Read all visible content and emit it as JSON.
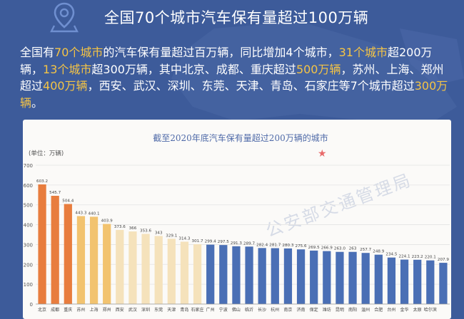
{
  "header": {
    "title": "全国70个城市汽车保有量超过100万辆",
    "icon": "location-pin-icon"
  },
  "summary": {
    "p1": "全国有",
    "h1": "70个城市",
    "p2": "的汽车保有量超过百万辆，同比增加4个城市，",
    "h2": "31个城市",
    "p3": "超200万辆，",
    "h3": "13个城市",
    "p4": "超300万辆，其中北京、成都、重庆超过",
    "h4": "500万辆",
    "p5": "，苏州、上海、郑州超过",
    "h5": "400万辆",
    "p6": "，西安、武汉、深圳、东莞、天津、青岛、石家庄等7个城市超过",
    "h6": "300万辆",
    "p7": "。"
  },
  "watermark": "公安部交通管理局",
  "colors": {
    "bg": "#3d5b9a",
    "highlight": "#f5c445",
    "over500": "#e87d3e",
    "over400": "#f2c36f",
    "over300": "#f5e2bb",
    "over200": "#4a6fb5"
  },
  "chart_data": {
    "type": "bar",
    "title": "截至2020年底汽车保有量超过200万辆的城市",
    "ylabel": "(单位：万辆)",
    "ylim": [
      0,
      700
    ],
    "yticks": [
      0,
      100,
      200,
      300,
      400,
      500,
      600,
      700
    ],
    "grid": true,
    "categories": [
      "北京",
      "成都",
      "重庆",
      "苏州",
      "上海",
      "郑州",
      "西安",
      "武汉",
      "深圳",
      "东莞",
      "天津",
      "青岛",
      "石家庄",
      "广州",
      "宁波",
      "佛山",
      "临沂",
      "长沙",
      "杭州",
      "南京",
      "济南",
      "保定",
      "潍坊",
      "昆明",
      "南阳",
      "温州",
      "合肥",
      "台州",
      "金华",
      "太原",
      "哈尔滨"
    ],
    "values": [
      603.2,
      545.7,
      504.4,
      443.3,
      440.1,
      403.9,
      373.6,
      366,
      353.6,
      343,
      329.1,
      314.3,
      301.7,
      299.4,
      297.5,
      291.3,
      289.7,
      282.4,
      281.7,
      280.3,
      275.6,
      269.5,
      266.9,
      263,
      263,
      257.7,
      248.9,
      234.5,
      224.1,
      223.2,
      220.1
    ],
    "value_labels": [
      "603.2",
      "545.7",
      "504.4",
      "443.3",
      "440.1",
      "403.9",
      "373.6",
      "366",
      "353.6",
      "343",
      "329.1",
      "314.3",
      "301.7",
      "299.4",
      "297.5",
      "291.3",
      "289.7",
      "282.4",
      "281.7",
      "280.3",
      "275.6",
      "269.5",
      "266.9",
      "263.0",
      "263",
      "257.7",
      "248.9",
      "234.5",
      "224.1",
      "223.2",
      "220.1"
    ],
    "extra": {
      "category": "",
      "value": 207.9,
      "label": "207.9"
    },
    "groups": [
      "over500",
      "over500",
      "over500",
      "over400",
      "over400",
      "over400",
      "over300",
      "over300",
      "over300",
      "over300",
      "over300",
      "over300",
      "over300",
      "over200",
      "over200",
      "over200",
      "over200",
      "over200",
      "over200",
      "over200",
      "over200",
      "over200",
      "over200",
      "over200",
      "over200",
      "over200",
      "over200",
      "over200",
      "over200",
      "over200",
      "over200"
    ]
  }
}
